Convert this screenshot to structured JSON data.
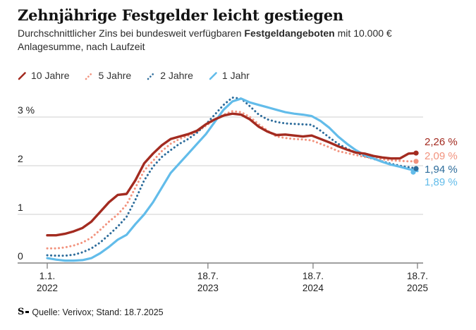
{
  "header": {
    "title": "Zehnjährige Festgelder leicht gestiegen",
    "subtitle_part1": "Durchschnittlicher Zins bei bundesweit verfügbaren ",
    "subtitle_bold": "Festgeldangeboten",
    "subtitle_part2": " mit 10.000 € Anlagesumme, nach Laufzeit"
  },
  "chart_data": {
    "type": "line",
    "x_start": "2022-01",
    "x_end": "2025-07",
    "x_interval": "monthly",
    "ylim": [
      0,
      3.5
    ],
    "grid": "horizontal",
    "legend_position": "top-left",
    "yticks": [
      {
        "label": "3 %",
        "value": 3
      },
      {
        "label": "2",
        "value": 2
      },
      {
        "label": "1",
        "value": 1
      },
      {
        "label": "0",
        "value": 0
      }
    ],
    "xticks": [
      {
        "line1": "1.1.",
        "line2": "2022"
      },
      {
        "line1": "18.7.",
        "line2": "2023"
      },
      {
        "line1": "18.7.",
        "line2": "2024"
      },
      {
        "line1": "18.7.",
        "line2": "2025"
      }
    ],
    "series": [
      {
        "name": "10 Jahre",
        "color": "#A32B20",
        "style": "solid",
        "end_label": "2,26 %",
        "end_value": 2.26,
        "values": [
          0.57,
          0.57,
          0.6,
          0.65,
          0.72,
          0.85,
          1.05,
          1.25,
          1.4,
          1.42,
          1.7,
          2.05,
          2.25,
          2.42,
          2.55,
          2.6,
          2.65,
          2.72,
          2.85,
          2.95,
          3.03,
          3.07,
          3.05,
          2.95,
          2.8,
          2.7,
          2.63,
          2.64,
          2.62,
          2.6,
          2.62,
          2.55,
          2.48,
          2.4,
          2.33,
          2.27,
          2.25,
          2.2,
          2.17,
          2.15,
          2.15,
          2.25,
          2.26
        ]
      },
      {
        "name": "5 Jahre",
        "color": "#F2937E",
        "style": "dotted",
        "end_label": "2,09 %",
        "end_value": 2.09,
        "values": [
          0.3,
          0.3,
          0.32,
          0.36,
          0.42,
          0.52,
          0.68,
          0.85,
          1.0,
          1.2,
          1.55,
          1.9,
          2.1,
          2.3,
          2.45,
          2.55,
          2.62,
          2.7,
          2.82,
          2.95,
          3.05,
          3.12,
          3.1,
          3.0,
          2.85,
          2.72,
          2.6,
          2.57,
          2.55,
          2.54,
          2.52,
          2.45,
          2.38,
          2.3,
          2.26,
          2.22,
          2.18,
          2.15,
          2.13,
          2.11,
          2.1,
          2.09,
          2.09
        ]
      },
      {
        "name": "2 Jahre",
        "color": "#2D6C9B",
        "style": "dotted",
        "end_label": "1,94 %",
        "end_value": 1.94,
        "values": [
          0.16,
          0.15,
          0.15,
          0.17,
          0.22,
          0.3,
          0.42,
          0.58,
          0.75,
          0.95,
          1.3,
          1.7,
          1.98,
          2.18,
          2.32,
          2.45,
          2.55,
          2.68,
          2.85,
          3.05,
          3.25,
          3.4,
          3.38,
          3.22,
          3.05,
          2.95,
          2.9,
          2.87,
          2.86,
          2.85,
          2.84,
          2.72,
          2.58,
          2.45,
          2.35,
          2.27,
          2.2,
          2.14,
          2.09,
          2.04,
          2.0,
          1.97,
          1.94
        ]
      },
      {
        "name": "1 Jahr",
        "color": "#62BCEA",
        "style": "solid",
        "end_label": "1,89 %",
        "end_value": 1.89,
        "values": [
          0.1,
          0.07,
          0.05,
          0.05,
          0.06,
          0.1,
          0.2,
          0.33,
          0.48,
          0.58,
          0.8,
          1.0,
          1.25,
          1.55,
          1.85,
          2.05,
          2.25,
          2.45,
          2.65,
          2.9,
          3.15,
          3.32,
          3.38,
          3.3,
          3.25,
          3.2,
          3.15,
          3.1,
          3.07,
          3.05,
          3.02,
          2.92,
          2.78,
          2.6,
          2.45,
          2.32,
          2.22,
          2.15,
          2.08,
          2.02,
          1.98,
          1.93,
          1.89
        ]
      }
    ]
  },
  "footer": {
    "logo": "S",
    "text": "Quelle: Verivox; Stand: 18.7.2025"
  },
  "colors": {
    "grid": "#cfcfcf",
    "axis": "#808080",
    "title_text": "#141414",
    "body_text": "#2b2b2b"
  }
}
